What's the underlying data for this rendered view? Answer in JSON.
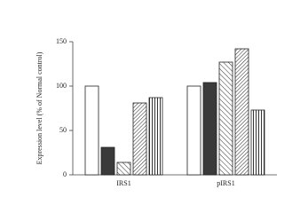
{
  "chart_data": {
    "type": "bar",
    "y_label": "Expression level (% of Normal control)",
    "categories": [
      "IRS1",
      "pIRS1"
    ],
    "series": [
      {
        "color": "#ffffff",
        "pattern": "solid",
        "values": [
          100,
          100
        ]
      },
      {
        "color": "#3a3a3a",
        "pattern": "solid",
        "values": [
          31,
          104
        ]
      },
      {
        "color": "#ffffff",
        "pattern": "diagonal-sparse",
        "values": [
          14,
          127
        ]
      },
      {
        "color": "#ffffff",
        "pattern": "diagonal-dense",
        "values": [
          81,
          142
        ]
      },
      {
        "color": "#ffffff",
        "pattern": "vertical",
        "values": [
          87,
          73
        ]
      }
    ],
    "ylim": [
      0,
      150
    ],
    "yticks": [
      0,
      50,
      100,
      150
    ],
    "grid": false
  }
}
